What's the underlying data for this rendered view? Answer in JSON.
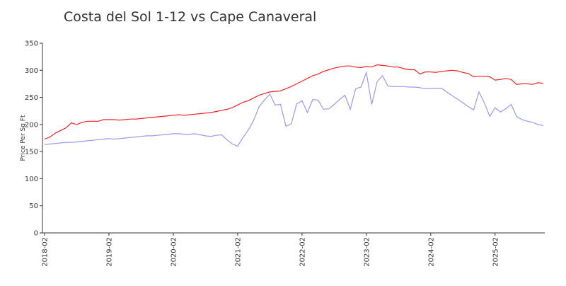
{
  "chart_data": {
    "type": "line",
    "title": "Costa del Sol 1-12 vs Cape Canaveral",
    "y_label": "Price Per Sq Ft",
    "x": [
      "2018-02",
      "2018-03",
      "2018-04",
      "2018-05",
      "2018-06",
      "2018-07",
      "2018-08",
      "2018-09",
      "2018-10",
      "2018-11",
      "2018-12",
      "2019-01",
      "2019-02",
      "2019-03",
      "2019-04",
      "2019-05",
      "2019-06",
      "2019-07",
      "2019-08",
      "2019-09",
      "2019-10",
      "2019-11",
      "2019-12",
      "2020-01",
      "2020-02",
      "2020-03",
      "2020-04",
      "2020-05",
      "2020-06",
      "2020-07",
      "2020-08",
      "2020-09",
      "2020-10",
      "2020-11",
      "2020-12",
      "2021-01",
      "2021-02",
      "2021-03",
      "2021-04",
      "2021-05",
      "2021-06",
      "2021-07",
      "2021-08",
      "2021-09",
      "2021-10",
      "2021-11",
      "2021-12",
      "2022-01",
      "2022-02",
      "2022-03",
      "2022-04",
      "2022-05",
      "2022-06",
      "2022-07",
      "2022-08",
      "2022-09",
      "2022-10",
      "2022-11",
      "2022-12",
      "2023-01",
      "2023-02",
      "2023-03",
      "2023-04",
      "2023-05",
      "2023-06",
      "2023-07",
      "2023-08",
      "2023-09",
      "2023-10",
      "2023-11",
      "2023-12",
      "2024-01",
      "2024-02",
      "2024-03",
      "2024-04",
      "2024-05",
      "2024-06",
      "2024-07",
      "2024-08",
      "2024-09",
      "2024-10",
      "2024-11",
      "2024-12",
      "2025-01",
      "2025-02",
      "2025-03",
      "2025-04",
      "2025-05",
      "2025-06",
      "2025-07",
      "2025-08",
      "2025-09",
      "2025-10",
      "2025-11"
    ],
    "xlim": [
      "2018-02",
      "2025-11"
    ],
    "xticks": [
      "2018-02",
      "2019-02",
      "2020-02",
      "2021-02",
      "2022-02",
      "2023-02",
      "2024-02",
      "2025-02"
    ],
    "ylim": [
      0,
      350
    ],
    "yticks": [
      0,
      50,
      100,
      150,
      200,
      250,
      300,
      350
    ],
    "grid": false,
    "series": [
      {
        "color": "#ee2222",
        "values": [
          173,
          177,
          184,
          189,
          194,
          203,
          200,
          204,
          206,
          206,
          206,
          209,
          209,
          209,
          208,
          209,
          210,
          210,
          211,
          212,
          213,
          214,
          215,
          216,
          217,
          218,
          217,
          218,
          219,
          220,
          221,
          222,
          224,
          226,
          228,
          231,
          236,
          241,
          244,
          249,
          254,
          257,
          260,
          261,
          262,
          266,
          270,
          275,
          280,
          285,
          290,
          293,
          298,
          301,
          304,
          306,
          308,
          308,
          306,
          305,
          307,
          306,
          310,
          309,
          308,
          306,
          306,
          303,
          301,
          301,
          293,
          297,
          297,
          296,
          298,
          299,
          300,
          299,
          296,
          294,
          288,
          289,
          289,
          288,
          282,
          283,
          285,
          283,
          274,
          275,
          275,
          274,
          277,
          276
        ]
      },
      {
        "color": "#9999ee",
        "values": [
          163,
          164,
          165,
          166,
          167,
          167,
          168,
          169,
          170,
          171,
          172,
          173,
          174,
          173,
          174,
          175,
          176,
          177,
          178,
          179,
          179,
          180,
          181,
          182,
          183,
          183,
          182,
          182,
          183,
          181,
          179,
          178,
          180,
          181,
          172,
          164,
          160,
          176,
          190,
          208,
          233,
          245,
          256,
          236,
          237,
          197,
          201,
          238,
          244,
          222,
          246,
          245,
          228,
          229,
          237,
          246,
          254,
          228,
          266,
          269,
          296,
          237,
          279,
          290,
          271,
          270,
          270,
          270,
          269,
          269,
          268,
          266,
          267,
          267,
          267,
          260,
          253,
          247,
          240,
          233,
          227,
          260,
          240,
          215,
          231,
          223,
          229,
          237,
          215,
          209,
          206,
          204,
          200,
          198
        ]
      }
    ]
  }
}
